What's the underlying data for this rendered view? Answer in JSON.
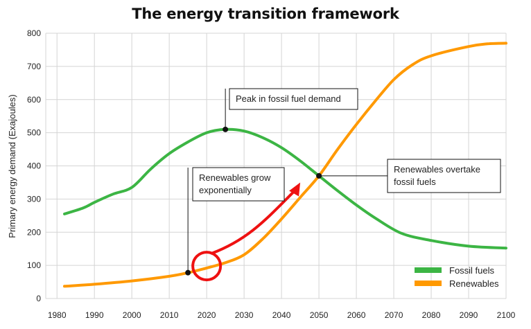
{
  "chart_data": {
    "type": "line",
    "title": "The energy transition framework",
    "xlabel": "",
    "ylabel": "Primary energy demand (Exajoules)",
    "xlim": [
      1977,
      2100
    ],
    "ylim": [
      0,
      800
    ],
    "x_ticks": [
      1980,
      1990,
      2000,
      2010,
      2020,
      2030,
      2040,
      2050,
      2060,
      2070,
      2080,
      2090,
      2100
    ],
    "y_ticks": [
      0,
      100,
      200,
      300,
      400,
      500,
      600,
      700,
      800
    ],
    "grid": true,
    "legend_position": "bottom-right",
    "series": [
      {
        "name": "Fossil fuels",
        "color": "#3cb544",
        "points": [
          [
            1982,
            255
          ],
          [
            1987,
            273
          ],
          [
            1990,
            290
          ],
          [
            1995,
            315
          ],
          [
            2000,
            335
          ],
          [
            2005,
            390
          ],
          [
            2010,
            437
          ],
          [
            2015,
            472
          ],
          [
            2020,
            500
          ],
          [
            2025,
            510
          ],
          [
            2030,
            505
          ],
          [
            2035,
            485
          ],
          [
            2040,
            455
          ],
          [
            2045,
            415
          ],
          [
            2050,
            370
          ],
          [
            2055,
            325
          ],
          [
            2060,
            282
          ],
          [
            2065,
            243
          ],
          [
            2072,
            197
          ],
          [
            2080,
            175
          ],
          [
            2090,
            158
          ],
          [
            2100,
            152
          ]
        ]
      },
      {
        "name": "Renewables",
        "color": "#ff9900",
        "points": [
          [
            1982,
            37
          ],
          [
            1990,
            43
          ],
          [
            2000,
            53
          ],
          [
            2010,
            67
          ],
          [
            2015,
            78
          ],
          [
            2020,
            92
          ],
          [
            2025,
            108
          ],
          [
            2030,
            132
          ],
          [
            2035,
            180
          ],
          [
            2040,
            240
          ],
          [
            2045,
            305
          ],
          [
            2050,
            370
          ],
          [
            2055,
            450
          ],
          [
            2060,
            525
          ],
          [
            2065,
            595
          ],
          [
            2070,
            660
          ],
          [
            2075,
            705
          ],
          [
            2080,
            732
          ],
          [
            2090,
            760
          ],
          [
            2095,
            768
          ],
          [
            2100,
            770
          ]
        ]
      }
    ],
    "annotations": [
      {
        "id": "peak",
        "text_lines": [
          "Peak in fossil fuel demand"
        ],
        "point": [
          2025,
          510
        ]
      },
      {
        "id": "grow",
        "text_lines": [
          "Renewables grow",
          "exponentially"
        ],
        "point": [
          2015,
          78
        ]
      },
      {
        "id": "overtake",
        "text_lines": [
          "Renewables overtake",
          "fossil fuels"
        ],
        "point": [
          2050,
          370
        ]
      }
    ],
    "highlight_arrow": {
      "color": "#ee1111",
      "from": [
        2021,
        105
      ],
      "to": [
        2045,
        350
      ]
    }
  }
}
